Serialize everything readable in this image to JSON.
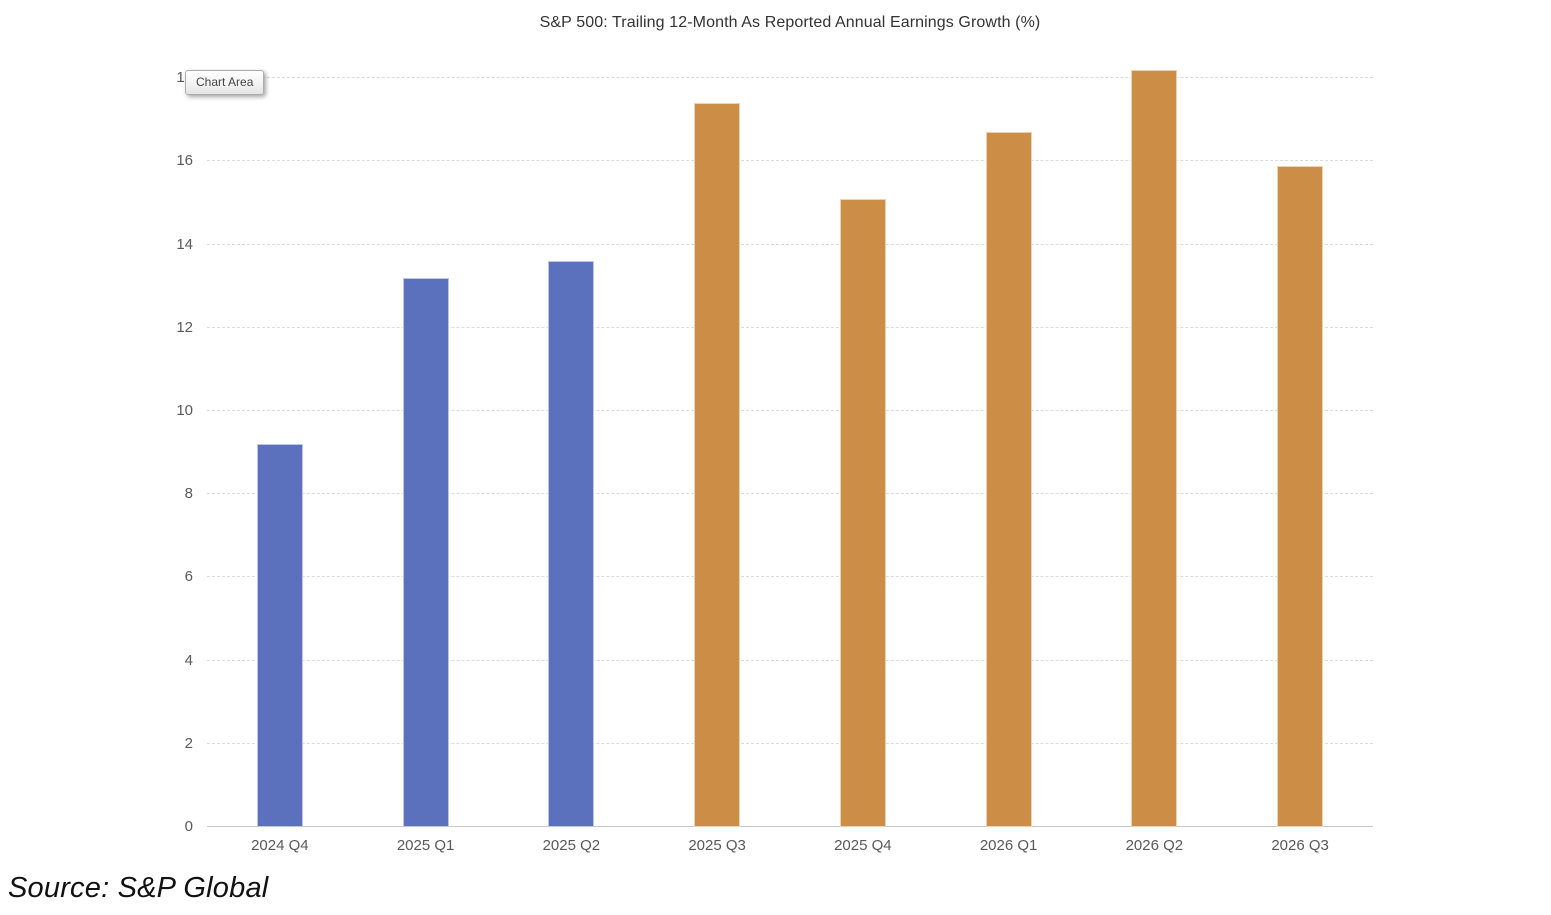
{
  "chart": {
    "title": "S&P 500: Trailing 12-Month As Reported Annual Earnings Growth (%)",
    "tooltip_label": "Chart Area"
  },
  "source_note": "Source: S&P Global",
  "chart_data": {
    "type": "bar",
    "title": "S&P 500: Trailing 12-Month As Reported Annual Earnings Growth (%)",
    "categories": [
      "2024 Q4",
      "2025 Q1",
      "2025 Q2",
      "2025 Q3",
      "2025 Q4",
      "2026 Q1",
      "2026 Q2",
      "2026 Q3"
    ],
    "values": [
      9.2,
      13.2,
      13.6,
      17.4,
      15.1,
      16.7,
      18.2,
      15.9
    ],
    "bar_colors": [
      "#5C71BE",
      "#5C71BE",
      "#5C71BE",
      "#CC8D47",
      "#CC8D47",
      "#CC8D47",
      "#CC8D47",
      "#CC8D47"
    ],
    "xlabel": "",
    "ylabel": "",
    "ylim": [
      0,
      18
    ],
    "ytick_step": 2,
    "yticks": [
      0,
      2,
      4,
      6,
      8,
      10,
      12,
      14,
      16,
      18
    ],
    "grid": "horizontal-dashed",
    "legend": "none"
  },
  "colors": {
    "bar_blue": "#5C71BE",
    "bar_orange": "#CC8D47",
    "gridline": "#DBDBDB",
    "axis_line": "#C9C9C9",
    "axis_label_text": "#595959",
    "title_text": "#333333",
    "background": "#FFFFFF"
  }
}
